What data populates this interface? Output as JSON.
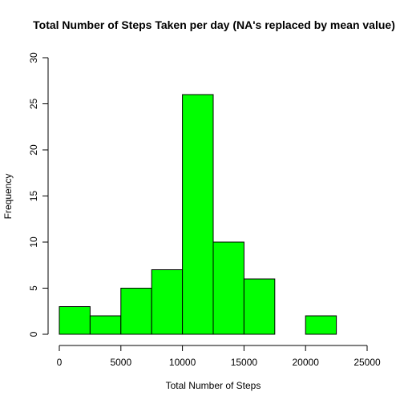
{
  "chart_data": {
    "type": "bar",
    "title": "Total Number of Steps Taken per day (NA's replaced by mean value)",
    "xlabel": "Total Number of Steps",
    "ylabel": "Frequency",
    "bins": [
      {
        "from": 0,
        "to": 2500,
        "count": 3
      },
      {
        "from": 2500,
        "to": 5000,
        "count": 2
      },
      {
        "from": 5000,
        "to": 7500,
        "count": 5
      },
      {
        "from": 7500,
        "to": 10000,
        "count": 7
      },
      {
        "from": 10000,
        "to": 12500,
        "count": 26
      },
      {
        "from": 12500,
        "to": 15000,
        "count": 10
      },
      {
        "from": 15000,
        "to": 17500,
        "count": 6
      },
      {
        "from": 17500,
        "to": 20000,
        "count": 0
      },
      {
        "from": 20000,
        "to": 22500,
        "count": 2
      },
      {
        "from": 22500,
        "to": 25000,
        "count": 0
      }
    ],
    "xlim": [
      0,
      25000
    ],
    "ylim": [
      0,
      30
    ],
    "xticks": [
      "0",
      "5000",
      "10000",
      "15000",
      "20000",
      "25000"
    ],
    "yticks": [
      "0",
      "5",
      "10",
      "15",
      "20",
      "25",
      "30"
    ],
    "bar_color": "#00ff00",
    "grid": false,
    "legend": "none"
  }
}
